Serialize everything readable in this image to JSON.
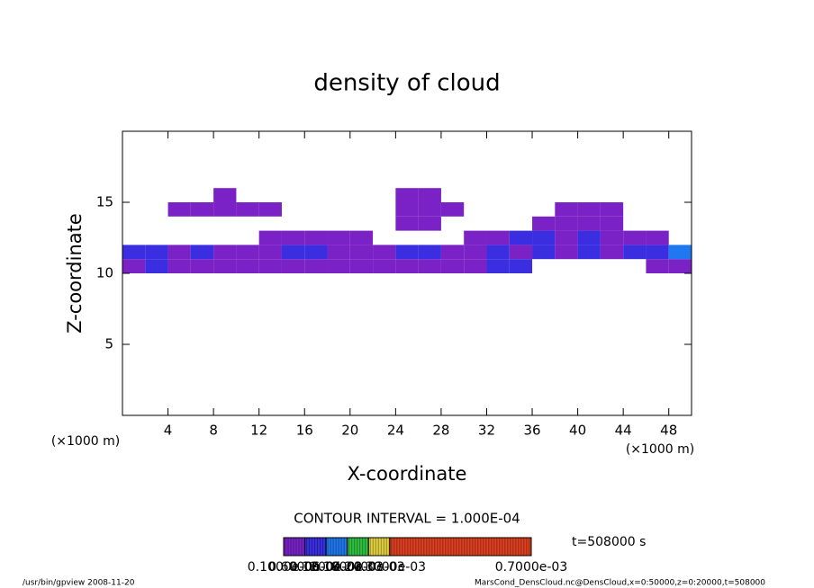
{
  "chart_data": {
    "type": "heatmap",
    "title": "density of cloud",
    "x_label": "X-coordinate",
    "y_label": "Z-coordinate",
    "x_unit": "(×1000 m)",
    "y_unit": "(×1000 m)",
    "xlim": [
      0,
      50
    ],
    "ylim": [
      0,
      20
    ],
    "xticks": [
      4,
      8,
      12,
      16,
      20,
      24,
      28,
      32,
      36,
      40,
      44,
      48
    ],
    "yticks": [
      5,
      10,
      15
    ],
    "x": [
      1,
      3,
      5,
      7,
      9,
      11,
      13,
      15,
      17,
      19,
      21,
      23,
      25,
      27,
      29,
      31,
      33,
      35,
      37,
      39,
      41,
      43,
      45,
      47,
      49
    ],
    "z": [
      10.5,
      11.5,
      12.5,
      13.5,
      14.5,
      15.5
    ],
    "values": [
      [
        5e-05,
        8e-05,
        5e-05,
        4e-05,
        5e-05,
        4e-05,
        3e-05,
        5e-05,
        4e-05,
        5e-05,
        4e-05,
        3e-05,
        5e-05,
        4e-05,
        3e-05,
        3e-05,
        8e-05,
        6e-05,
        null,
        null,
        null,
        null,
        null,
        4e-05,
        5e-05
      ],
      [
        7e-05,
        8e-05,
        5e-05,
        6e-05,
        5e-05,
        4e-05,
        5e-05,
        7e-05,
        8e-05,
        5e-05,
        4e-05,
        5e-05,
        6e-05,
        8e-05,
        5e-05,
        3e-05,
        7e-05,
        5e-05,
        6e-05,
        4e-05,
        7e-05,
        5e-05,
        8e-05,
        7e-05,
        0.00013
      ],
      [
        null,
        null,
        null,
        null,
        null,
        null,
        3e-05,
        4e-05,
        4e-05,
        3e-05,
        5e-05,
        null,
        null,
        null,
        null,
        3e-05,
        4e-05,
        7e-05,
        9e-05,
        5e-05,
        7e-05,
        4e-05,
        5e-05,
        3e-05,
        null
      ],
      [
        null,
        null,
        null,
        null,
        null,
        null,
        null,
        null,
        null,
        null,
        null,
        null,
        4e-05,
        3e-05,
        null,
        null,
        null,
        null,
        3e-05,
        4e-05,
        3e-05,
        4e-05,
        null,
        null,
        null
      ],
      [
        null,
        null,
        3e-05,
        4e-05,
        4e-05,
        3e-05,
        3e-05,
        null,
        null,
        null,
        null,
        null,
        4e-05,
        5e-05,
        3e-05,
        null,
        null,
        null,
        null,
        3e-05,
        3e-05,
        3e-05,
        null,
        null,
        null
      ],
      [
        null,
        null,
        null,
        null,
        3e-05,
        null,
        null,
        null,
        null,
        null,
        null,
        null,
        3e-05,
        3e-05,
        null,
        null,
        null,
        null,
        null,
        null,
        null,
        null,
        null,
        null,
        null
      ]
    ],
    "contour_interval": "CONTOUR INTERVAL = 1.000E-04",
    "colorbar": {
      "ticks": [
        {
          "value": 1e-07,
          "label": "0.1000e-06"
        },
        {
          "value": 6e-05,
          "label": "0.6000e-04"
        },
        {
          "value": 0.00012,
          "label": "0.1200e-03"
        },
        {
          "value": 0.00018,
          "label": "0.1800e-03"
        },
        {
          "value": 0.00024,
          "label": "0.2400e-03"
        },
        {
          "value": 0.0003,
          "label": "0.3000e-03"
        },
        {
          "value": 0.0007,
          "label": "0.7000e-03"
        }
      ],
      "colors": [
        "#7a22c6",
        "#3a2ee0",
        "#1f78f0",
        "#2fc040",
        "#e0d040",
        "#e04020"
      ]
    },
    "time_label": "t=508000 s",
    "footer_left": "/usr/bin/gpview  2008-11-20",
    "footer_right": "MarsCond_DensCloud.nc@DensCloud,x=0:50000,z=0:20000,t=508000"
  }
}
